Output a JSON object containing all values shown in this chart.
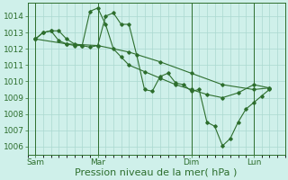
{
  "background_color": "#cff0ea",
  "grid_color": "#aad8d0",
  "line_color": "#2d6e2d",
  "marker_color": "#2d6e2d",
  "xlabel": "Pression niveau de la mer( hPa )",
  "xlabel_fontsize": 8,
  "ylim": [
    1005.5,
    1014.8
  ],
  "yticks": [
    1006,
    1007,
    1008,
    1009,
    1010,
    1011,
    1012,
    1013,
    1014
  ],
  "tick_label_fontsize": 6.5,
  "xtick_labels": [
    "Sam",
    "Mar",
    "Dim",
    "Lun"
  ],
  "xtick_positions": [
    0,
    32,
    80,
    112
  ],
  "vline_positions": [
    0,
    32,
    80,
    112
  ],
  "xlim": [
    -4,
    128
  ],
  "line1_x": [
    0,
    4,
    8,
    12,
    16,
    20,
    24,
    28,
    32,
    36,
    40,
    44,
    48,
    52,
    56,
    60,
    64,
    68,
    72,
    76,
    80,
    84,
    88,
    92,
    96,
    100,
    104,
    108,
    112,
    116,
    120
  ],
  "line1_y": [
    1012.6,
    1013.0,
    1013.1,
    1013.1,
    1012.6,
    1012.3,
    1012.2,
    1012.1,
    1012.2,
    1014.0,
    1014.2,
    1013.5,
    1013.5,
    1011.6,
    1009.5,
    1009.4,
    1010.3,
    1010.5,
    1009.9,
    1009.8,
    1009.4,
    1009.5,
    1007.5,
    1007.25,
    1006.05,
    1006.5,
    1007.5,
    1008.3,
    1008.7,
    1009.1,
    1009.5
  ],
  "line2_x": [
    0,
    4,
    8,
    12,
    16,
    20,
    24,
    28,
    32,
    36,
    40,
    44,
    48,
    56,
    64,
    72,
    80,
    88,
    96,
    104,
    112,
    120
  ],
  "line2_y": [
    1012.6,
    1013.0,
    1013.1,
    1012.5,
    1012.3,
    1012.2,
    1012.2,
    1014.3,
    1014.5,
    1013.5,
    1012.0,
    1011.5,
    1011.0,
    1010.6,
    1010.2,
    1009.8,
    1009.5,
    1009.2,
    1009.0,
    1009.3,
    1009.8,
    1009.6
  ],
  "line3_x": [
    0,
    16,
    32,
    48,
    64,
    80,
    96,
    112,
    120
  ],
  "line3_y": [
    1012.6,
    1012.3,
    1012.2,
    1011.8,
    1011.2,
    1010.5,
    1009.8,
    1009.5,
    1009.6
  ]
}
